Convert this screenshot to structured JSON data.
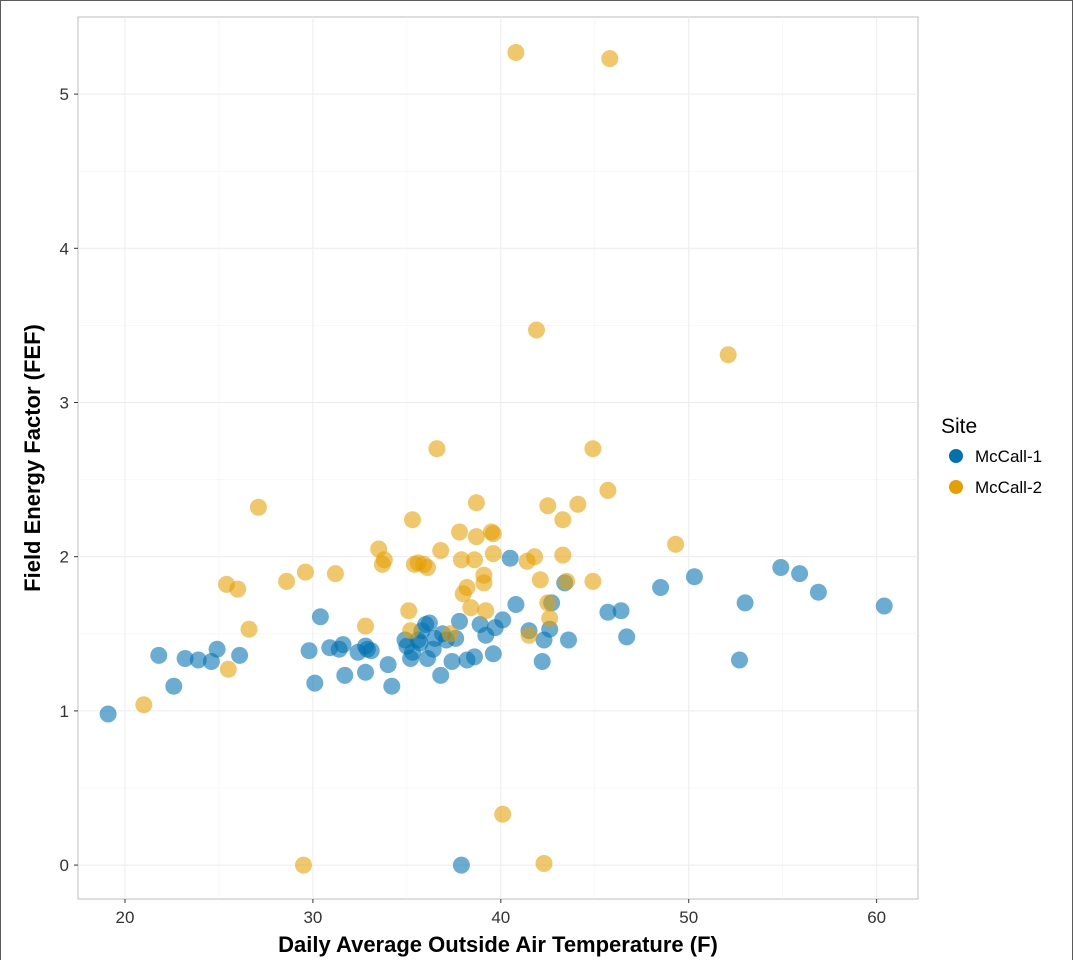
{
  "chart_data": {
    "type": "scatter",
    "title": "",
    "xlabel": "Daily Average Outside Air Temperature (F)",
    "ylabel": "Field Energy Factor (FEF)",
    "xlim": [
      17.5,
      62.2
    ],
    "ylim": [
      -0.22,
      5.5
    ],
    "x_ticks": [
      "20",
      "30",
      "40",
      "50",
      "60"
    ],
    "y_ticks": [
      "0",
      "1",
      "2",
      "3",
      "4",
      "5"
    ],
    "grid": true,
    "legend": {
      "title": "Site",
      "position": "right"
    },
    "series": [
      {
        "name": "McCall-1",
        "color": "#0072B2",
        "points": [
          [
            19.1,
            0.98
          ],
          [
            21.8,
            1.36
          ],
          [
            22.6,
            1.16
          ],
          [
            23.2,
            1.34
          ],
          [
            23.9,
            1.33
          ],
          [
            24.6,
            1.32
          ],
          [
            24.9,
            1.4
          ],
          [
            26.1,
            1.36
          ],
          [
            29.8,
            1.39
          ],
          [
            30.1,
            1.18
          ],
          [
            30.4,
            1.61
          ],
          [
            30.9,
            1.41
          ],
          [
            31.4,
            1.4
          ],
          [
            31.6,
            1.43
          ],
          [
            31.7,
            1.23
          ],
          [
            32.4,
            1.38
          ],
          [
            32.8,
            1.42
          ],
          [
            32.9,
            1.4
          ],
          [
            32.8,
            1.25
          ],
          [
            33.1,
            1.39
          ],
          [
            34.0,
            1.3
          ],
          [
            34.2,
            1.16
          ],
          [
            34.9,
            1.46
          ],
          [
            35.0,
            1.42
          ],
          [
            35.2,
            1.34
          ],
          [
            35.3,
            1.38
          ],
          [
            35.6,
            1.46
          ],
          [
            35.7,
            1.44
          ],
          [
            35.8,
            1.52
          ],
          [
            36.0,
            1.56
          ],
          [
            36.1,
            1.34
          ],
          [
            36.2,
            1.57
          ],
          [
            36.4,
            1.4
          ],
          [
            36.5,
            1.47
          ],
          [
            36.8,
            1.23
          ],
          [
            36.9,
            1.5
          ],
          [
            37.1,
            1.46
          ],
          [
            37.4,
            1.32
          ],
          [
            37.6,
            1.47
          ],
          [
            37.8,
            1.58
          ],
          [
            37.9,
            0.0
          ],
          [
            38.2,
            1.33
          ],
          [
            38.6,
            1.35
          ],
          [
            38.9,
            1.56
          ],
          [
            39.2,
            1.49
          ],
          [
            39.6,
            1.37
          ],
          [
            39.7,
            1.54
          ],
          [
            40.1,
            1.59
          ],
          [
            40.5,
            1.99
          ],
          [
            40.8,
            1.69
          ],
          [
            41.5,
            1.52
          ],
          [
            42.2,
            1.32
          ],
          [
            42.3,
            1.46
          ],
          [
            42.6,
            1.53
          ],
          [
            42.7,
            1.7
          ],
          [
            43.4,
            1.83
          ],
          [
            43.6,
            1.46
          ],
          [
            45.7,
            1.64
          ],
          [
            46.4,
            1.65
          ],
          [
            46.7,
            1.48
          ],
          [
            48.5,
            1.8
          ],
          [
            50.3,
            1.87
          ],
          [
            52.7,
            1.33
          ],
          [
            53.0,
            1.7
          ],
          [
            54.9,
            1.93
          ],
          [
            55.9,
            1.89
          ],
          [
            56.9,
            1.77
          ],
          [
            60.4,
            1.68
          ]
        ]
      },
      {
        "name": "McCall-2",
        "color": "#E69F00",
        "points": [
          [
            21.0,
            1.04
          ],
          [
            25.4,
            1.82
          ],
          [
            25.5,
            1.27
          ],
          [
            26.0,
            1.79
          ],
          [
            26.6,
            1.53
          ],
          [
            27.1,
            2.32
          ],
          [
            28.6,
            1.84
          ],
          [
            29.5,
            0.0
          ],
          [
            29.6,
            1.9
          ],
          [
            31.2,
            1.89
          ],
          [
            32.8,
            1.55
          ],
          [
            33.5,
            2.05
          ],
          [
            33.7,
            1.95
          ],
          [
            33.8,
            1.98
          ],
          [
            35.1,
            1.65
          ],
          [
            35.2,
            1.52
          ],
          [
            35.3,
            2.24
          ],
          [
            35.4,
            1.95
          ],
          [
            35.6,
            1.96
          ],
          [
            35.9,
            1.95
          ],
          [
            36.1,
            1.93
          ],
          [
            36.6,
            2.7
          ],
          [
            36.8,
            2.04
          ],
          [
            37.3,
            1.5
          ],
          [
            37.8,
            2.16
          ],
          [
            37.9,
            1.98
          ],
          [
            38.0,
            1.76
          ],
          [
            38.2,
            1.8
          ],
          [
            38.4,
            1.67
          ],
          [
            38.6,
            1.98
          ],
          [
            38.7,
            2.13
          ],
          [
            38.7,
            2.35
          ],
          [
            39.1,
            1.88
          ],
          [
            39.1,
            1.83
          ],
          [
            39.2,
            1.65
          ],
          [
            39.5,
            2.16
          ],
          [
            39.6,
            2.02
          ],
          [
            39.6,
            2.15
          ],
          [
            40.1,
            0.33
          ],
          [
            40.8,
            5.27
          ],
          [
            41.4,
            1.97
          ],
          [
            41.5,
            1.49
          ],
          [
            41.8,
            2.0
          ],
          [
            41.9,
            3.47
          ],
          [
            42.1,
            1.85
          ],
          [
            42.3,
            0.01
          ],
          [
            42.5,
            2.33
          ],
          [
            42.5,
            1.7
          ],
          [
            42.6,
            1.6
          ],
          [
            43.3,
            2.01
          ],
          [
            43.5,
            1.84
          ],
          [
            44.1,
            2.34
          ],
          [
            44.9,
            2.7
          ],
          [
            44.9,
            1.84
          ],
          [
            45.7,
            2.43
          ],
          [
            45.8,
            5.23
          ],
          [
            49.3,
            2.08
          ],
          [
            52.1,
            3.31
          ],
          [
            43.3,
            2.24
          ]
        ]
      }
    ]
  }
}
